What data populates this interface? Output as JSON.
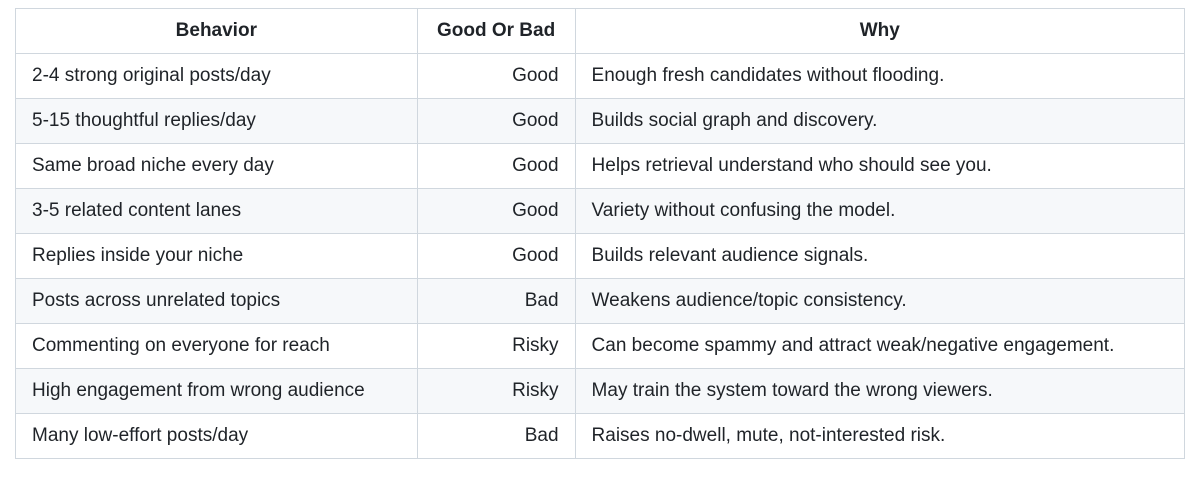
{
  "table": {
    "header": [
      "Behavior",
      "Good Or Bad",
      "Why"
    ],
    "rows": [
      [
        "2-4 strong original posts/day",
        "Good",
        "Enough fresh candidates without flooding."
      ],
      [
        "5-15 thoughtful replies/day",
        "Good",
        "Builds social graph and discovery."
      ],
      [
        "Same broad niche every day",
        "Good",
        "Helps retrieval understand who should see you."
      ],
      [
        "3-5 related content lanes",
        "Good",
        "Variety without confusing the model."
      ],
      [
        "Replies inside your niche",
        "Good",
        "Builds relevant audience signals."
      ],
      [
        "Posts across unrelated topics",
        "Bad",
        "Weakens audience/topic consistency."
      ],
      [
        "Commenting on everyone for reach",
        "Risky",
        "Can become spammy and attract weak/negative engagement."
      ],
      [
        "High engagement from wrong audience",
        "Risky",
        "May train the system toward the wrong viewers."
      ],
      [
        "Many low-effort posts/day",
        "Bad",
        "Raises no-dwell, mute, not-interested risk."
      ]
    ]
  }
}
